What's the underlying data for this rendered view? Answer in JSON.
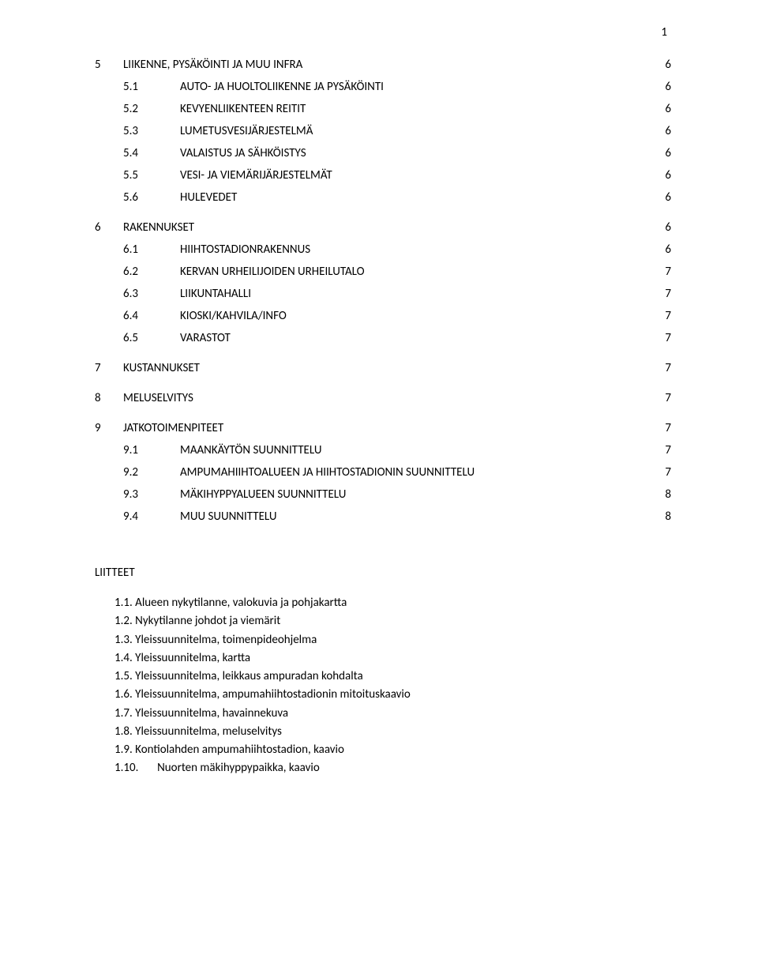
{
  "page_number": "1",
  "toc": [
    {
      "lvl": 1,
      "num": "5",
      "text": "LIIKENNE, PYSÄKÖINTI JA MUU INFRA",
      "pg": "6",
      "gap": false
    },
    {
      "lvl": 2,
      "num": "5.1",
      "text": "AUTO- JA HUOLTOLIIKENNE JA PYSÄKÖINTI",
      "pg": "6",
      "gap": false
    },
    {
      "lvl": 2,
      "num": "5.2",
      "text": "KEVYENLIIKENTEEN REITIT",
      "pg": "6",
      "gap": false
    },
    {
      "lvl": 2,
      "num": "5.3",
      "text": "LUMETUSVESIJÄRJESTELMÄ",
      "pg": "6",
      "gap": false
    },
    {
      "lvl": 2,
      "num": "5.4",
      "text": "VALAISTUS JA SÄHKÖISTYS",
      "pg": "6",
      "gap": false
    },
    {
      "lvl": 2,
      "num": "5.5",
      "text": "VESI- JA VIEMÄRIJÄRJESTELMÄT",
      "pg": "6",
      "gap": false
    },
    {
      "lvl": 2,
      "num": "5.6",
      "text": "HULEVEDET",
      "pg": "6",
      "gap": true
    },
    {
      "lvl": 1,
      "num": "6",
      "text": "RAKENNUKSET",
      "pg": "6",
      "gap": false
    },
    {
      "lvl": 2,
      "num": "6.1",
      "text": "HIIHTOSTADIONRAKENNUS",
      "pg": "6",
      "gap": false
    },
    {
      "lvl": 2,
      "num": "6.2",
      "text": "KERVAN URHEILIJOIDEN URHEILUTALO",
      "pg": "7",
      "gap": false
    },
    {
      "lvl": 2,
      "num": "6.3",
      "text": "LIIKUNTAHALLI",
      "pg": "7",
      "gap": false
    },
    {
      "lvl": 2,
      "num": "6.4",
      "text": "KIOSKI/KAHVILA/INFO",
      "pg": "7",
      "gap": false
    },
    {
      "lvl": 2,
      "num": "6.5",
      "text": "VARASTOT",
      "pg": "7",
      "gap": true
    },
    {
      "lvl": 1,
      "num": "7",
      "text": "KUSTANNUKSET",
      "pg": "7",
      "gap": true
    },
    {
      "lvl": 1,
      "num": "8",
      "text": "MELUSELVITYS",
      "pg": "7",
      "gap": true
    },
    {
      "lvl": 1,
      "num": "9",
      "text": "JATKOTOIMENPITEET",
      "pg": "7",
      "gap": false
    },
    {
      "lvl": 2,
      "num": "9.1",
      "text": "MAANKÄYTÖN SUUNNITTELU",
      "pg": "7",
      "gap": false
    },
    {
      "lvl": 2,
      "num": "9.2",
      "text": "AMPUMAHIIHTOALUEEN JA HIIHTOSTADIONIN SUUNNITTELU",
      "pg": "7",
      "gap": false
    },
    {
      "lvl": 2,
      "num": "9.3",
      "text": "MÄKIHYPPYALUEEN SUUNNITTELU",
      "pg": "8",
      "gap": false
    },
    {
      "lvl": 2,
      "num": "9.4",
      "text": "MUU SUUNNITTELU",
      "pg": "8",
      "gap": false
    }
  ],
  "liitteet_title": "LIITTEET",
  "liitteet": [
    {
      "num": "1.1.",
      "text": "Alueen nykytilanne, valokuvia ja pohjakartta"
    },
    {
      "num": "1.2.",
      "text": "Nykytilanne johdot ja viemärit"
    },
    {
      "num": "1.3.",
      "text": "Yleissuunnitelma, toimenpideohjelma"
    },
    {
      "num": "1.4.",
      "text": "Yleissuunnitelma, kartta"
    },
    {
      "num": "1.5.",
      "text": "Yleissuunnitelma, leikkaus ampuradan kohdalta"
    },
    {
      "num": "1.6.",
      "text": "Yleissuunnitelma, ampumahiihtostadionin mitoituskaavio"
    },
    {
      "num": "1.7.",
      "text": "Yleissuunnitelma, havainnekuva"
    },
    {
      "num": "1.8.",
      "text": "Yleissuunnitelma, meluselvitys"
    },
    {
      "num": "1.9.",
      "text": "Kontiolahden ampumahiihtostadion, kaavio"
    },
    {
      "num": "1.10.",
      "text": "Nuorten mäkihyppypaikka, kaavio",
      "wide": true
    }
  ],
  "colors": {
    "text": "#000000",
    "background": "#ffffff"
  },
  "typography": {
    "font_family": "Calibri",
    "font_size_pt": 11
  }
}
